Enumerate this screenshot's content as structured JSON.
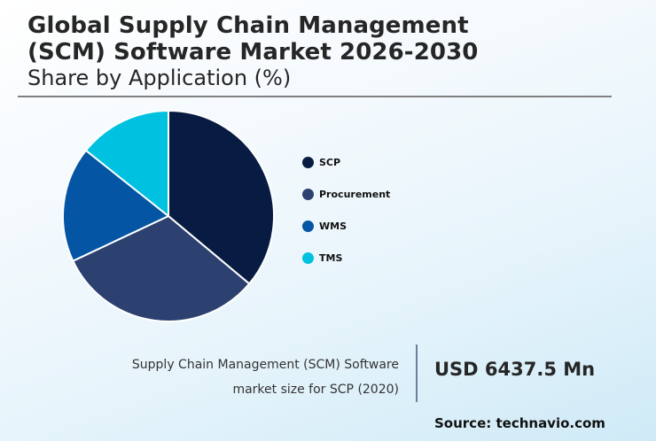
{
  "header": {
    "title_line1": "Global Supply Chain Management",
    "title_line2": "(SCM) Software Market 2026-2030",
    "subtitle": "Share by Application (%)"
  },
  "legend": {
    "items": [
      {
        "label": "SCP",
        "color": "#081c43"
      },
      {
        "label": "Procurement",
        "color": "#2c4170"
      },
      {
        "label": "WMS",
        "color": "#0455a3"
      },
      {
        "label": "TMS",
        "color": "#00c2e0"
      }
    ]
  },
  "footer": {
    "description_line1": "Supply Chain Management (SCM) Software",
    "description_line2": "market size for SCP (2020)",
    "value": "USD 6437.5 Mn",
    "source": "Source: technavio.com"
  },
  "chart_data": {
    "type": "pie",
    "title": "Global Supply Chain Management (SCM) Software Market 2026-2030",
    "subtitle": "Share by Application (%)",
    "categories": [
      "SCP",
      "Procurement",
      "WMS",
      "TMS"
    ],
    "values": [
      36.1,
      31.9,
      17.7,
      14.3
    ],
    "colors": [
      "#081c43",
      "#2c4170",
      "#0455a3",
      "#00c2e0"
    ],
    "start_angle_deg": 0,
    "direction": "clockwise",
    "data_labels": false,
    "legend_position": "right",
    "annotation": "Supply Chain Management (SCM) Software market size for SCP (2020): USD 6437.5 Mn"
  }
}
